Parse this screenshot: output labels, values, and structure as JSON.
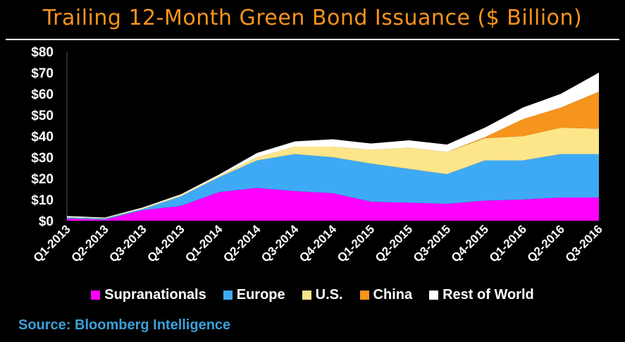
{
  "title": "Trailing 12-Month Green Bond Issuance ($ Billion)",
  "source": "Source: Bloomberg Intelligence",
  "chart_data": {
    "type": "area",
    "stacked": true,
    "categories": [
      "Q1-2013",
      "Q2-2013",
      "Q3-2013",
      "Q4-2013",
      "Q1-2014",
      "Q2-2014",
      "Q3-2014",
      "Q4-2014",
      "Q1-2015",
      "Q2-2015",
      "Q3-2015",
      "Q4-2015",
      "Q1-2016",
      "Q2-2016",
      "Q3-2016"
    ],
    "yticks": [
      "$0",
      "$10",
      "$20",
      "$30",
      "$40",
      "$50",
      "$60",
      "$70",
      "$80"
    ],
    "ylim": [
      0,
      80
    ],
    "series": [
      {
        "name": "Supranationals",
        "color": "#ff00ff",
        "values": [
          1,
          0.5,
          5,
          7,
          13.5,
          15.5,
          14,
          13,
          9,
          8.5,
          8,
          9.5,
          10,
          11,
          11
        ]
      },
      {
        "name": "Europe",
        "color": "#3eaaf5",
        "values": [
          0.5,
          0.5,
          0.5,
          4.5,
          7,
          13,
          17.5,
          17,
          18,
          16,
          14,
          19,
          18.5,
          20.5,
          20.5
        ]
      },
      {
        "name": "U.S.",
        "color": "#fde589",
        "values": [
          0.2,
          0.2,
          0.3,
          0.5,
          0.5,
          1.5,
          3.5,
          5,
          6.5,
          10,
          10.5,
          10.5,
          11.5,
          12.5,
          12
        ]
      },
      {
        "name": "China",
        "color": "#f7941d",
        "values": [
          0,
          0,
          0,
          0,
          0,
          0,
          0,
          0,
          0,
          0,
          0,
          0.5,
          8,
          9.5,
          17.5
        ]
      },
      {
        "name": "Rest of World",
        "color": "#ffffff",
        "values": [
          0.5,
          0.3,
          0.5,
          0.5,
          0.8,
          2,
          2.5,
          3.5,
          3,
          3.5,
          3.5,
          4.5,
          5.5,
          6.5,
          9
        ]
      }
    ],
    "legend_position": "bottom",
    "grid": false
  }
}
